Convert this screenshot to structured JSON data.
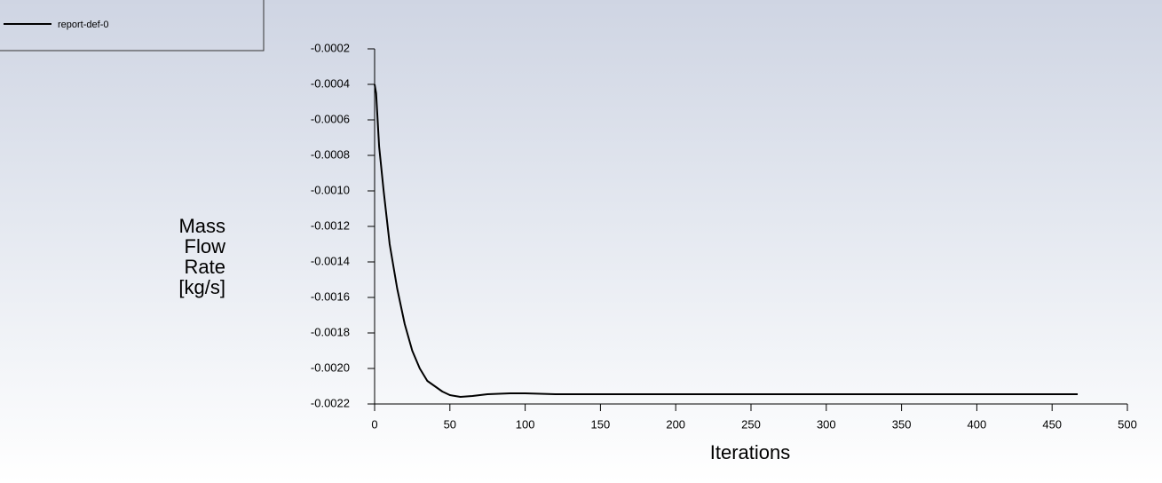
{
  "chart_data": {
    "type": "line",
    "x_label": "Iterations",
    "y_label": "Mass Flow Rate [kg/s]",
    "xlim": [
      0,
      500
    ],
    "xticks": [
      0,
      50,
      100,
      150,
      200,
      250,
      300,
      350,
      400,
      450,
      500
    ],
    "ylim": [
      -0.0022,
      -0.0002
    ],
    "yticks": [
      -0.0002,
      -0.0004,
      -0.0006,
      -0.0008,
      {
        "value": -0.001,
        "label": "-0.0010"
      },
      -0.0012,
      -0.0014,
      -0.0016,
      -0.0018,
      {
        "value": -0.002,
        "label": "-0.0020"
      },
      -0.0022
    ],
    "legend": "top-left",
    "series": [
      {
        "name": "report-def-0",
        "color": "#000000",
        "x": [
          0,
          1,
          3,
          6,
          10,
          15,
          20,
          25,
          30,
          35,
          40,
          45,
          50,
          57,
          65,
          75,
          90,
          100,
          120,
          150,
          200,
          250,
          300,
          350,
          400,
          467
        ],
        "values": [
          -0.0004,
          -0.00045,
          -0.00075,
          -0.001,
          -0.0013,
          -0.00155,
          -0.00175,
          -0.0019,
          -0.002,
          -0.00207,
          -0.0021,
          -0.00213,
          -0.00215,
          -0.00216,
          -0.002155,
          -0.002145,
          -0.00214,
          -0.00214,
          -0.002145,
          -0.002145,
          -0.002145,
          -0.002145,
          -0.002145,
          -0.002145,
          -0.002145,
          -0.002145
        ]
      }
    ]
  }
}
